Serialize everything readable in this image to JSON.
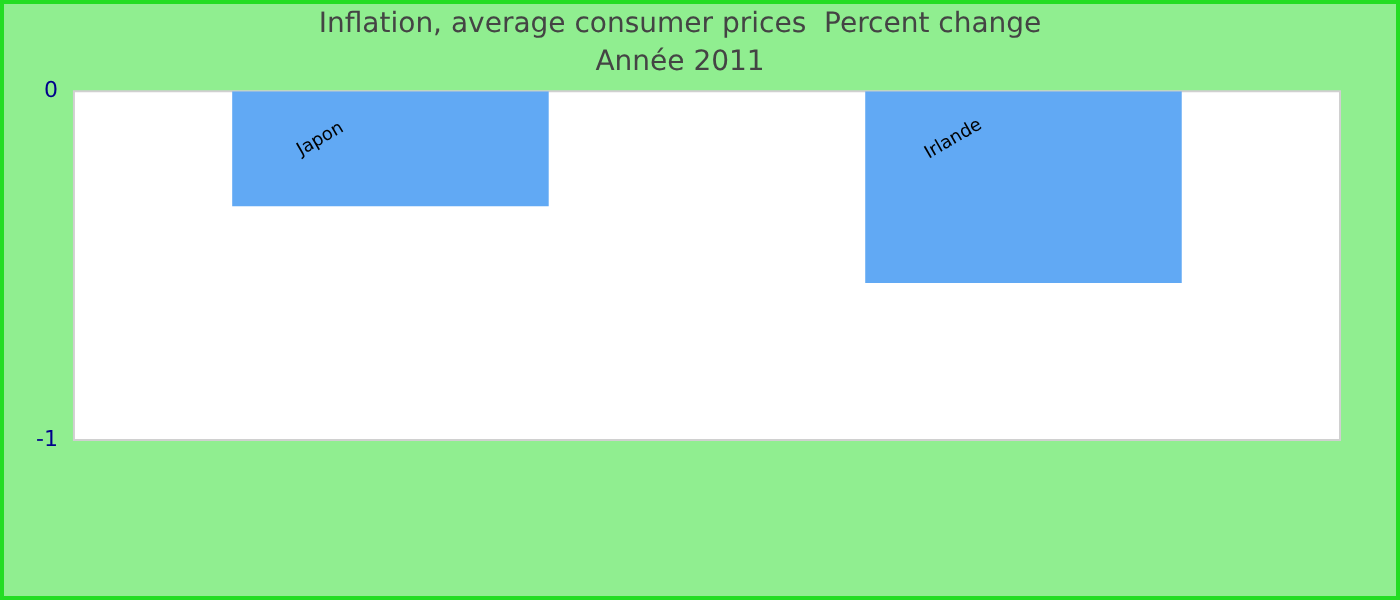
{
  "chart_data": {
    "type": "bar",
    "title": "Inflation, average consumer prices  Percent change",
    "subtitle": "Année 2011",
    "categories": [
      "Japon",
      "Irlande"
    ],
    "values": [
      -0.33,
      -0.55
    ],
    "color": "#61a9f4",
    "ylim": [
      -1,
      0
    ],
    "yticks": [
      -1,
      0
    ],
    "grid": false,
    "legend": false,
    "tick_labels": "y"
  }
}
